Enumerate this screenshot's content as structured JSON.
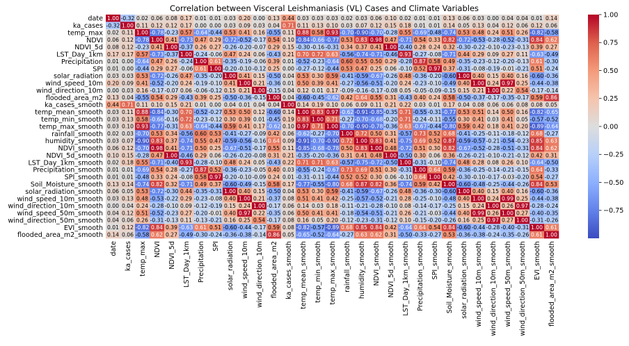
{
  "chart_data": {
    "type": "heatmap",
    "title": "Correlation between Visceral Leishmaniasis (VL) Cases and Climate Variables",
    "variables": [
      "date",
      "ka_cases",
      "temp_max",
      "NDVI",
      "NDVI_5d",
      "LST_Day_1km",
      "Precipitation",
      "SPI",
      "solar_radiation",
      "wind_speed_10m",
      "wind_direction_10m",
      "flooded_area_m2",
      "ka_cases_smooth",
      "temp_mean_smooth",
      "temp_min_smooth",
      "temp_max_smooth",
      "rainfall_smooth",
      "humidity_smooth",
      "NDVI_smooth",
      "NDVI_5d_smooth",
      "LST_Day_1km_smooth",
      "Precipitation_smooth",
      "SPI_smooth",
      "Soil_Moisture_smooth",
      "solar_radiation_smooth",
      "wind_speed_10m_smooth",
      "wind_direction_10m_smooth",
      "wind_speed_50m_smooth",
      "wind_direction_50m_smooth",
      "EVI_smooth",
      "flooded_area_m2_smooth"
    ],
    "col_labels": [
      "date",
      "ka_cases",
      "temp_max",
      "NDVI",
      "NDVI_5d",
      "LST_Day_1km",
      "Precipitation",
      "SPI",
      "solar_radiation",
      "wind_speed_10m",
      "wind_direction_10m",
      "flooded_area_m2",
      "ka_cases_smooth",
      "temp_mean_smooth",
      "temp_min_smooth",
      "temp_max_smooth",
      "rainfall_smooth",
      "humidity_smooth",
      "NDVI_smooth",
      "NDVI_5d_smooth",
      "LST_Day_1km_smooth",
      "Precipitation_smooth",
      "SPI_smooth",
      "Soil_Moisture_smooth",
      "solar_radiation_smooth",
      "wind_speed_10m_smooth",
      "wind_direction_10m_smooth",
      "wind_speed_50m_smooth",
      "wind_direction_50m_smooth",
      "EVI_smooth",
      "flooded_area_m2_smooth"
    ],
    "value_range": [
      -1,
      1
    ],
    "colormap": "coolwarm",
    "colorbar_ticks": [
      "1.00",
      "0.75",
      "0.50",
      "0.25",
      "0.00",
      "−0.25",
      "−0.50",
      "−0.75"
    ],
    "colorbar_tick_values": [
      1.0,
      0.75,
      0.5,
      0.25,
      0.0,
      -0.25,
      -0.5,
      -0.75
    ],
    "annotation_decimals": 2,
    "values": [
      [
        1.0,
        -0.32,
        0.02,
        0.06,
        0.08,
        0.17,
        0.01,
        0.01,
        0.03,
        0.2,
        0.0,
        0.13,
        0.44,
        0.03,
        0.03,
        0.03,
        0.02,
        0.03,
        0.06,
        0.1,
        0.02,
        0.01,
        0.01,
        0.13,
        0.06,
        0.03,
        0.0,
        0.04,
        0.04,
        0.01,
        0.14
      ],
      [
        -0.32,
        1.0,
        0.11,
        0.12,
        0.12,
        0.17,
        0.0,
        0.0,
        0.03,
        0.09,
        0.03,
        0.04,
        0.71,
        0.11,
        0.13,
        0.1,
        0.03,
        0.07,
        0.12,
        0.15,
        0.18,
        0.01,
        0.01,
        0.14,
        0.05,
        0.13,
        0.04,
        0.12,
        0.06,
        0.12,
        0.06
      ],
      [
        0.02,
        0.11,
        1.0,
        -0.78,
        -0.23,
        0.57,
        -0.64,
        -0.44,
        0.53,
        0.41,
        0.16,
        -0.55,
        0.11,
        0.88,
        0.58,
        0.93,
        -0.7,
        -0.9,
        -0.7,
        -0.28,
        0.55,
        -0.69,
        -0.48,
        -0.74,
        0.53,
        0.48,
        0.24,
        0.51,
        0.26,
        -0.82,
        -0.58
      ],
      [
        0.06,
        0.12,
        -0.78,
        1.0,
        0.41,
        -0.73,
        0.47,
        0.29,
        -0.72,
        -0.52,
        -0.17,
        0.54,
        0.1,
        -0.84,
        -0.66,
        -0.77,
        0.53,
        0.83,
        0.98,
        0.47,
        -0.71,
        0.54,
        0.33,
        0.82,
        -0.72,
        -0.53,
        -0.28,
        -0.52,
        -0.31,
        0.84,
        0.62
      ],
      [
        0.08,
        0.12,
        -0.23,
        0.41,
        1.0,
        -0.37,
        0.26,
        0.27,
        -0.26,
        -0.2,
        -0.07,
        0.29,
        0.15,
        -0.3,
        -0.16,
        -0.31,
        0.34,
        0.37,
        0.41,
        1.0,
        -0.4,
        0.28,
        0.24,
        0.32,
        -0.3,
        -0.22,
        -0.1,
        -0.23,
        -0.13,
        0.39,
        0.27
      ],
      [
        0.17,
        0.17,
        0.57,
        -0.73,
        -0.37,
        1.0,
        -0.24,
        -0.06,
        0.47,
        0.24,
        0.06,
        -0.43,
        0.21,
        0.7,
        0.72,
        0.63,
        -0.56,
        -0.74,
        -0.71,
        -0.46,
        0.93,
        -0.27,
        -0.08,
        -0.71,
        0.44,
        0.29,
        0.09,
        0.27,
        0.11,
        -0.63,
        -0.49
      ],
      [
        0.01,
        0.0,
        -0.64,
        0.47,
        0.26,
        -0.24,
        1.0,
        0.61,
        -0.35,
        -0.19,
        -0.06,
        0.39,
        0.01,
        -0.52,
        -0.23,
        -0.64,
        0.6,
        0.55,
        0.5,
        0.29,
        -0.28,
        0.87,
        0.58,
        0.49,
        -0.35,
        -0.23,
        -0.12,
        -0.2,
        -0.13,
        0.61,
        -0.3
      ],
      [
        0.01,
        0.0,
        -0.44,
        0.29,
        0.27,
        -0.06,
        0.61,
        1.0,
        -0.2,
        -0.1,
        -0.12,
        0.25,
        0.0,
        -0.27,
        -0.12,
        -0.44,
        0.53,
        0.47,
        0.25,
        0.06,
        -0.1,
        0.52,
        0.97,
        0.37,
        -0.31,
        -0.08,
        -0.19,
        -0.01,
        -0.21,
        0.51,
        -0.24
      ],
      [
        0.03,
        0.03,
        0.53,
        -0.72,
        -0.26,
        0.47,
        -0.35,
        -0.2,
        1.0,
        0.41,
        0.15,
        -0.5,
        0.04,
        0.53,
        0.3,
        0.59,
        -0.41,
        -0.59,
        -0.67,
        -0.26,
        0.48,
        -0.36,
        -0.2,
        -0.6,
        1.0,
        0.4,
        0.15,
        0.4,
        0.16,
        -0.6,
        -0.36
      ],
      [
        0.2,
        0.09,
        0.41,
        -0.52,
        -0.2,
        0.24,
        -0.19,
        -0.1,
        0.41,
        1.0,
        0.21,
        -0.36,
        0.01,
        0.5,
        0.39,
        0.41,
        -0.27,
        -0.56,
        -0.51,
        -0.2,
        0.24,
        -0.23,
        -0.1,
        -0.49,
        0.4,
        1.0,
        0.24,
        0.97,
        0.25,
        -0.44,
        -0.38
      ],
      [
        0.0,
        0.03,
        0.16,
        -0.17,
        -0.07,
        0.06,
        -0.06,
        -0.12,
        0.15,
        0.21,
        1.0,
        -0.15,
        0.04,
        0.12,
        0.01,
        0.17,
        -0.09,
        -0.16,
        -0.17,
        -0.08,
        0.05,
        -0.05,
        -0.09,
        -0.15,
        0.15,
        0.21,
        1.0,
        0.22,
        0.54,
        -0.17,
        -0.14
      ],
      [
        0.13,
        0.04,
        -0.55,
        0.54,
        0.29,
        -0.43,
        0.39,
        0.25,
        -0.5,
        -0.36,
        -0.15,
        1.0,
        0.04,
        -0.6,
        -0.45,
        -0.62,
        0.42,
        0.64,
        0.55,
        0.31,
        -0.43,
        0.4,
        0.24,
        0.58,
        -0.5,
        -0.37,
        -0.17,
        -0.35,
        -0.17,
        0.59,
        0.86
      ],
      [
        0.44,
        0.71,
        0.11,
        0.1,
        0.15,
        0.21,
        0.01,
        0.0,
        0.04,
        0.01,
        0.04,
        0.04,
        1.0,
        0.14,
        0.19,
        0.1,
        0.06,
        0.09,
        0.11,
        0.21,
        0.22,
        0.03,
        0.01,
        0.17,
        0.04,
        0.08,
        0.06,
        0.06,
        0.08,
        0.08,
        0.05
      ],
      [
        0.03,
        0.11,
        0.88,
        -0.84,
        -0.3,
        0.7,
        -0.52,
        -0.27,
        0.53,
        0.5,
        0.12,
        -0.6,
        0.14,
        1.0,
        0.83,
        0.97,
        -0.62,
        -0.91,
        -0.85,
        -0.35,
        0.71,
        -0.55,
        -0.31,
        -0.77,
        0.53,
        0.51,
        0.14,
        0.5,
        0.16,
        -0.82,
        -0.65
      ],
      [
        0.03,
        0.13,
        0.58,
        -0.66,
        -0.16,
        0.72,
        -0.23,
        -0.12,
        0.3,
        0.39,
        0.01,
        -0.45,
        0.19,
        0.83,
        1.0,
        0.71,
        -0.27,
        -0.7,
        -0.68,
        -0.2,
        0.71,
        -0.24,
        -0.11,
        -0.55,
        0.3,
        0.41,
        0.03,
        0.41,
        0.05,
        -0.57,
        -0.52
      ],
      [
        0.03,
        0.1,
        0.93,
        -0.77,
        -0.31,
        0.63,
        -0.64,
        -0.44,
        0.59,
        0.41,
        0.17,
        -0.62,
        0.1,
        0.97,
        0.71,
        1.0,
        -0.7,
        -0.9,
        -0.78,
        -0.36,
        0.63,
        -0.67,
        -0.44,
        -0.8,
        0.59,
        0.42,
        0.18,
        0.41,
        0.2,
        -0.89,
        -0.64
      ],
      [
        0.02,
        0.03,
        -0.7,
        0.53,
        0.34,
        -0.56,
        0.6,
        0.53,
        -0.41,
        -0.27,
        -0.09,
        0.42,
        0.06,
        -0.62,
        -0.27,
        -0.7,
        1.0,
        0.72,
        0.5,
        0.31,
        -0.57,
        0.73,
        0.52,
        0.68,
        -0.41,
        -0.25,
        -0.11,
        -0.18,
        -0.12,
        0.68,
        -0.27
      ],
      [
        0.03,
        0.07,
        -0.9,
        0.83,
        0.37,
        -0.74,
        0.55,
        0.47,
        -0.59,
        -0.56,
        -0.16,
        0.64,
        0.09,
        -0.91,
        -0.7,
        -0.9,
        0.72,
        1.0,
        0.83,
        0.41,
        -0.75,
        0.69,
        0.52,
        0.87,
        -0.59,
        -0.57,
        -0.21,
        -0.54,
        -0.23,
        0.85,
        0.63
      ],
      [
        0.06,
        0.12,
        -0.7,
        0.98,
        0.41,
        -0.71,
        0.5,
        0.25,
        -0.67,
        -0.51,
        -0.17,
        0.55,
        0.11,
        -0.85,
        -0.68,
        -0.78,
        0.5,
        0.83,
        1.0,
        0.48,
        -0.72,
        0.51,
        0.3,
        0.82,
        -0.67,
        -0.52,
        -0.28,
        -0.51,
        -0.31,
        0.84,
        0.62
      ],
      [
        0.1,
        0.15,
        -0.28,
        0.47,
        1.0,
        -0.46,
        0.29,
        0.06,
        -0.26,
        -0.2,
        -0.08,
        0.31,
        0.21,
        -0.35,
        -0.2,
        -0.36,
        0.31,
        0.41,
        0.48,
        1.0,
        -0.5,
        0.3,
        0.06,
        0.36,
        -0.26,
        -0.21,
        -0.1,
        -0.21,
        -0.12,
        0.42,
        0.31
      ],
      [
        0.02,
        0.18,
        0.55,
        -0.71,
        -0.4,
        0.93,
        -0.28,
        -0.1,
        0.48,
        0.24,
        0.05,
        -0.43,
        0.22,
        0.71,
        0.71,
        0.63,
        -0.57,
        -0.75,
        -0.72,
        -0.5,
        1.0,
        -0.31,
        -0.1,
        -0.74,
        0.48,
        0.28,
        0.08,
        0.26,
        0.1,
        -0.64,
        -0.5
      ],
      [
        0.01,
        0.01,
        -0.69,
        0.54,
        0.28,
        -0.27,
        0.87,
        0.52,
        -0.36,
        -0.23,
        -0.05,
        0.4,
        0.03,
        -0.55,
        -0.24,
        -0.67,
        0.73,
        0.69,
        0.51,
        0.3,
        -0.31,
        1.0,
        0.64,
        0.59,
        -0.36,
        -0.25,
        -0.14,
        -0.21,
        -0.15,
        0.64,
        -0.33
      ],
      [
        0.01,
        0.01,
        -0.48,
        0.33,
        0.24,
        -0.08,
        0.58,
        0.97,
        -0.2,
        -0.1,
        -0.09,
        0.24,
        0.01,
        -0.31,
        -0.11,
        -0.44,
        0.52,
        0.52,
        0.3,
        0.06,
        -0.1,
        0.64,
        1.0,
        0.42,
        -0.3,
        -0.1,
        -0.17,
        -0.03,
        -0.2,
        0.54,
        -0.27
      ],
      [
        0.13,
        0.14,
        -0.74,
        0.82,
        0.32,
        -0.71,
        0.49,
        0.37,
        -0.6,
        -0.49,
        -0.15,
        0.58,
        0.17,
        -0.77,
        -0.55,
        -0.8,
        0.68,
        0.87,
        0.82,
        0.36,
        -0.74,
        0.59,
        0.42,
        1.0,
        -0.6,
        -0.48,
        -0.25,
        -0.44,
        -0.26,
        0.84,
        0.53
      ],
      [
        0.06,
        0.05,
        0.53,
        -0.72,
        -0.3,
        0.44,
        -0.35,
        -0.31,
        1.0,
        0.4,
        0.15,
        -0.5,
        0.04,
        0.53,
        0.3,
        0.59,
        -0.41,
        -0.59,
        -0.67,
        -0.26,
        0.48,
        -0.36,
        -0.3,
        -0.6,
        1.0,
        0.4,
        0.15,
        0.4,
        0.16,
        -0.6,
        -0.36
      ],
      [
        0.03,
        0.13,
        0.48,
        -0.53,
        -0.22,
        0.29,
        -0.23,
        -0.08,
        0.4,
        1.0,
        0.21,
        -0.37,
        0.08,
        0.51,
        0.41,
        0.42,
        -0.25,
        -0.57,
        -0.52,
        -0.21,
        0.28,
        -0.25,
        -0.1,
        -0.48,
        0.4,
        1.0,
        0.24,
        0.99,
        0.25,
        -0.44,
        -0.38
      ],
      [
        0.0,
        0.04,
        0.24,
        -0.28,
        -0.1,
        0.09,
        -0.12,
        -0.19,
        0.15,
        0.24,
        1.0,
        -0.17,
        0.06,
        0.14,
        0.03,
        0.18,
        -0.11,
        -0.21,
        -0.28,
        -0.1,
        0.08,
        -0.14,
        -0.17,
        -0.25,
        0.15,
        0.24,
        1.0,
        0.26,
        0.97,
        -0.28,
        -0.24
      ],
      [
        0.04,
        0.12,
        0.51,
        -0.52,
        -0.23,
        0.27,
        -0.2,
        -0.01,
        0.4,
        0.97,
        0.22,
        -0.35,
        0.06,
        0.5,
        0.41,
        0.41,
        -0.18,
        -0.54,
        -0.51,
        -0.21,
        0.26,
        -0.21,
        -0.03,
        -0.44,
        0.4,
        0.99,
        0.26,
        1.0,
        0.27,
        -0.4,
        -0.35
      ],
      [
        0.04,
        0.06,
        0.26,
        -0.31,
        -0.13,
        0.11,
        -0.13,
        -0.21,
        0.16,
        0.25,
        0.54,
        -0.17,
        0.08,
        0.16,
        0.05,
        0.2,
        -0.12,
        -0.23,
        -0.31,
        -0.12,
        0.1,
        -0.15,
        -0.2,
        -0.26,
        0.16,
        0.25,
        0.97,
        0.27,
        1.0,
        -0.31,
        -0.26
      ],
      [
        0.01,
        0.12,
        -0.82,
        0.84,
        0.39,
        -0.63,
        0.61,
        0.51,
        -0.6,
        -0.44,
        -0.17,
        0.59,
        0.08,
        -0.82,
        -0.57,
        -0.89,
        0.68,
        0.85,
        0.84,
        0.42,
        -0.64,
        0.64,
        0.54,
        0.84,
        -0.6,
        -0.44,
        -0.28,
        -0.4,
        -0.31,
        1.0,
        0.61
      ],
      [
        0.14,
        0.06,
        -0.58,
        0.62,
        0.27,
        -0.49,
        -0.3,
        -0.24,
        -0.36,
        -0.38,
        -0.14,
        0.86,
        0.05,
        -0.65,
        -0.52,
        -0.64,
        -0.27,
        0.63,
        0.62,
        0.31,
        -0.5,
        -0.33,
        -0.27,
        0.53,
        -0.36,
        -0.38,
        -0.24,
        -0.35,
        -0.26,
        0.61,
        1.0
      ]
    ]
  }
}
